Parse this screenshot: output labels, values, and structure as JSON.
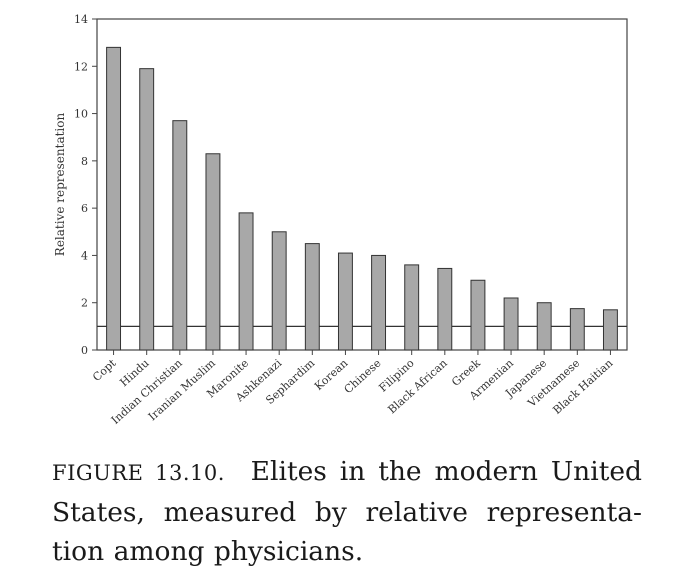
{
  "chart_data": {
    "type": "bar",
    "categories": [
      "Copt",
      "Hindu",
      "Indian Christian",
      "Iranian Muslim",
      "Maronite",
      "Ashkenazi",
      "Sephardim",
      "Korean",
      "Chinese",
      "Filipino",
      "Black African",
      "Greek",
      "Armenian",
      "Japanese",
      "Vietnamese",
      "Black Haitian"
    ],
    "values": [
      12.8,
      11.9,
      9.7,
      8.3,
      5.8,
      5.0,
      4.5,
      4.1,
      4.0,
      3.6,
      3.45,
      2.95,
      2.2,
      2.0,
      1.75,
      1.7
    ],
    "ylabel": "Relative representation",
    "xlabel": "",
    "ylim": [
      0,
      14
    ],
    "yticks": [
      "0",
      "2",
      "4",
      "6",
      "8",
      "10",
      "12",
      "14"
    ],
    "reference_line": 1,
    "bar_color": "#a8a8a8",
    "grid": false
  },
  "caption": {
    "label": "FIGURE 13.10.",
    "text": "Elites in the modern United States, measured by relative representa­tion among physicians."
  }
}
